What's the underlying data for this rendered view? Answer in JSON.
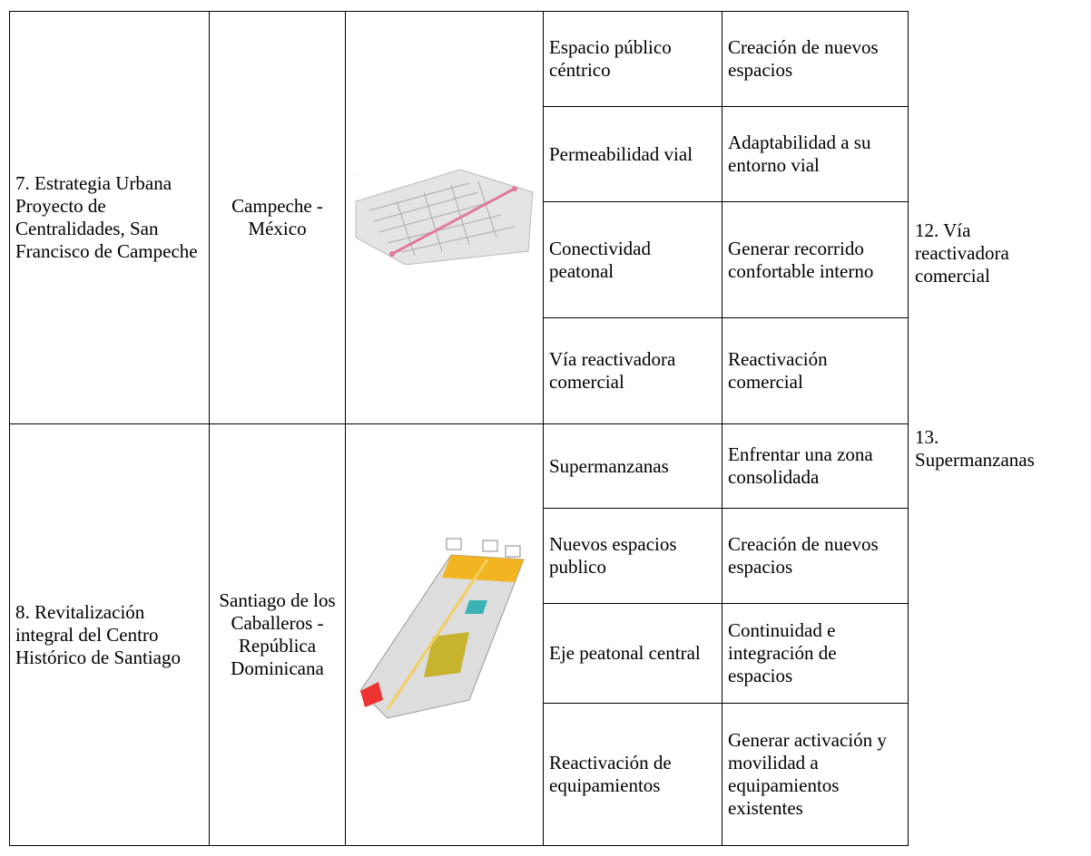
{
  "table": {
    "rows": [
      {
        "project": "7. Estrategia Urbana Proyecto de Centralidades, San Francisco de Campeche",
        "location": "Campeche - México",
        "items": [
          {
            "aspect": "Espacio público céntrico",
            "strategy": "Creación de nuevos espacios"
          },
          {
            "aspect": "Permeabilidad vial",
            "strategy": "Adaptabilidad a su entorno vial"
          },
          {
            "aspect": "Conectividad peatonal",
            "strategy": "Generar recorrido confortable interno"
          },
          {
            "aspect": "Vía reactivadora comercial",
            "strategy": "Reactivación comercial"
          }
        ]
      },
      {
        "project": "8. Revitalización integral del Centro Histórico de Santiago",
        "location": "Santiago de los Caballeros - República Dominicana",
        "items": [
          {
            "aspect": "Supermanzanas",
            "strategy": "Enfrentar una zona consolidada"
          },
          {
            "aspect": "Nuevos espacios publico",
            "strategy": "Creación de nuevos espacios"
          },
          {
            "aspect": "Eje peatonal central",
            "strategy": "Continuidad e integración de espacios"
          },
          {
            "aspect": "Reactivación de equipamientos",
            "strategy": "Generar activación y movilidad a equipamientos existentes"
          }
        ]
      }
    ]
  },
  "side_notes": [
    "12. Vía reactivadora comercial",
    "13. Supermanzanas"
  ]
}
